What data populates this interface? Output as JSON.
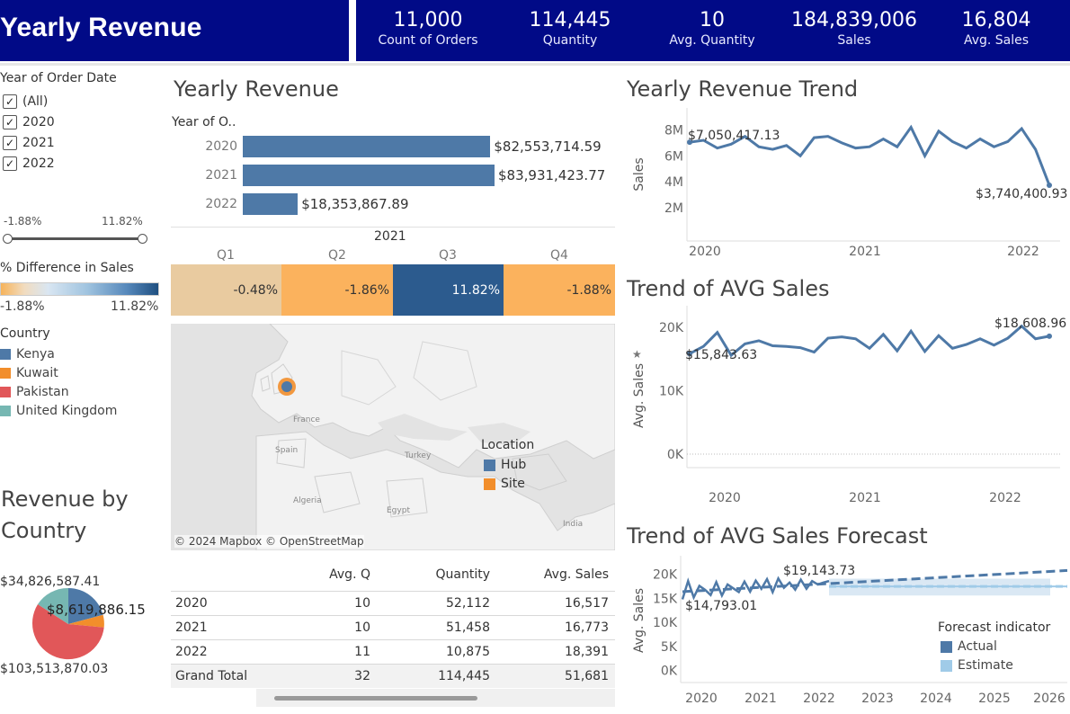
{
  "header": {
    "title": "Yearly Revenue",
    "kpis": [
      {
        "value": "11,000",
        "label": "Count of Orders"
      },
      {
        "value": "114,445",
        "label": "Quantity"
      },
      {
        "value": "10",
        "label": "Avg. Quantity"
      },
      {
        "value": "184,839,006",
        "label": "Sales"
      },
      {
        "value": "16,804",
        "label": "Avg. Sales"
      }
    ]
  },
  "filters": {
    "year_title": "Year of Order Date",
    "years": [
      {
        "label": "(All)",
        "checked": true
      },
      {
        "label": "2020",
        "checked": true
      },
      {
        "label": "2021",
        "checked": true
      },
      {
        "label": "2022",
        "checked": true
      }
    ],
    "slider_min": "-1.88%",
    "slider_max": "11.82%",
    "diff_title": "% Difference in Sales",
    "diff_min": "-1.88%",
    "diff_max": "11.82%",
    "country_title": "Country",
    "countries": [
      {
        "label": "Kenya",
        "color": "#4e79a7"
      },
      {
        "label": "Kuwait",
        "color": "#f28e2b"
      },
      {
        "label": "Pakistan",
        "color": "#e15759"
      },
      {
        "label": "United Kingdom",
        "color": "#76b7b2"
      }
    ]
  },
  "revenue_by_country": {
    "title_line1": "Revenue by",
    "title_line2": "Country",
    "labels": [
      "$34,826,587.41",
      "$8,619,886.15",
      "$103,513,870.03"
    ]
  },
  "yearly_revenue": {
    "title": "Yearly Revenue",
    "axis_header": "Year of O..",
    "chart_data": {
      "type": "bar",
      "categories": [
        "2020",
        "2021",
        "2022"
      ],
      "values": [
        82553714.59,
        83931423.77,
        18353867.89
      ],
      "value_labels": [
        "$82,553,714.59",
        "$83,931,423.77",
        "$18,353,867.89"
      ]
    }
  },
  "quarter_heatmap": {
    "year": "2021",
    "quarters": [
      "Q1",
      "Q2",
      "Q3",
      "Q4"
    ],
    "values": [
      "-0.48%",
      "-1.86%",
      "11.82%",
      "-1.88%"
    ],
    "colors": [
      "#e9cba0",
      "#fbb25d",
      "#2c5b8e",
      "#fbb25d"
    ],
    "text_colors": [
      "#333333",
      "#333333",
      "#ffffff",
      "#333333"
    ]
  },
  "map": {
    "labels": [
      "France",
      "Spain",
      "Algeria",
      "Egypt",
      "Turkey",
      "India"
    ],
    "credit": "© 2024 Mapbox © OpenStreetMap",
    "location_title": "Location",
    "location_items": [
      {
        "label": "Hub",
        "color": "#4e79a7"
      },
      {
        "label": "Site",
        "color": "#f28e2b"
      }
    ]
  },
  "summary_table": {
    "headers": [
      "Avg. Q",
      "Quantity",
      "Avg. Sales"
    ],
    "rows": [
      {
        "year": "2020",
        "avg_q": "10",
        "quantity": "52,112",
        "avg_sales": "16,517"
      },
      {
        "year": "2021",
        "avg_q": "10",
        "quantity": "51,458",
        "avg_sales": "16,773"
      },
      {
        "year": "2022",
        "avg_q": "11",
        "quantity": "10,875",
        "avg_sales": "18,391"
      }
    ],
    "total": {
      "year": "Grand Total",
      "avg_q": "32",
      "quantity": "114,445",
      "avg_sales": "51,681"
    }
  },
  "trend": {
    "title": "Yearly Revenue Trend",
    "ylabel": "Sales",
    "start_label": "$7,050,417.13",
    "end_label": "$3,740,400.93",
    "chart_data": {
      "type": "line",
      "x_ticks": [
        "2020",
        "2021",
        "2022"
      ],
      "y_ticks": [
        "8M",
        "6M",
        "4M",
        "2M"
      ],
      "values": [
        7050417,
        7200000,
        6600000,
        6900000,
        7500000,
        6700000,
        6500000,
        6800000,
        6000000,
        7400000,
        7500000,
        7000000,
        6600000,
        6700000,
        7300000,
        6700000,
        8200000,
        6000000,
        7900000,
        7100000,
        6600000,
        7300000,
        6700000,
        7100000,
        8100000,
        6500000,
        3740401
      ],
      "ylim": [
        0,
        9000000
      ]
    }
  },
  "avg_trend": {
    "title": "Trend of AVG Sales",
    "ylabel": "Avg. Sales",
    "start_label": "$15,843.63",
    "end_label": "$18,608.96",
    "chart_data": {
      "type": "line",
      "x_ticks": [
        "2020",
        "2021",
        "2022"
      ],
      "y_ticks": [
        "20K",
        "10K",
        "0K"
      ],
      "values": [
        15844,
        17000,
        19200,
        15600,
        17400,
        17900,
        17100,
        17000,
        16800,
        16100,
        18300,
        18500,
        18200,
        16700,
        18900,
        16300,
        19400,
        16200,
        18700,
        16700,
        17300,
        18200,
        17200,
        18300,
        20200,
        18200,
        18609
      ],
      "ylim": [
        -1000,
        22000
      ]
    }
  },
  "forecast": {
    "title": "Trend of AVG Sales Forecast",
    "ylabel": "Avg. Sales",
    "start_label": "$14,793.01",
    "peak_label": "$19,143.73",
    "legend_title": "Forecast indicator",
    "legend_items": [
      {
        "label": "Actual",
        "color": "#4e79a7"
      },
      {
        "label": "Estimate",
        "color": "#a0cbe8"
      }
    ],
    "chart_data": {
      "type": "line",
      "x_ticks": [
        "2020",
        "2021",
        "2022",
        "2023",
        "2024",
        "2025",
        "2026"
      ],
      "y_ticks": [
        "20K",
        "15K",
        "10K",
        "5K",
        "0K"
      ],
      "actual": [
        14793,
        18600,
        15200,
        17600,
        16800,
        15700,
        18400,
        15600,
        17900,
        17100,
        16300,
        18500,
        16400,
        18700,
        17000,
        19000,
        16300,
        19144,
        17200,
        18300,
        16800,
        18900,
        17000,
        18600,
        17900,
        18300,
        18609
      ],
      "trend_start": 16400,
      "trend_end": 20800,
      "estimate_level": 17500,
      "estimate_band": [
        15600,
        19100
      ],
      "ylim": [
        -1000,
        22000
      ]
    }
  }
}
